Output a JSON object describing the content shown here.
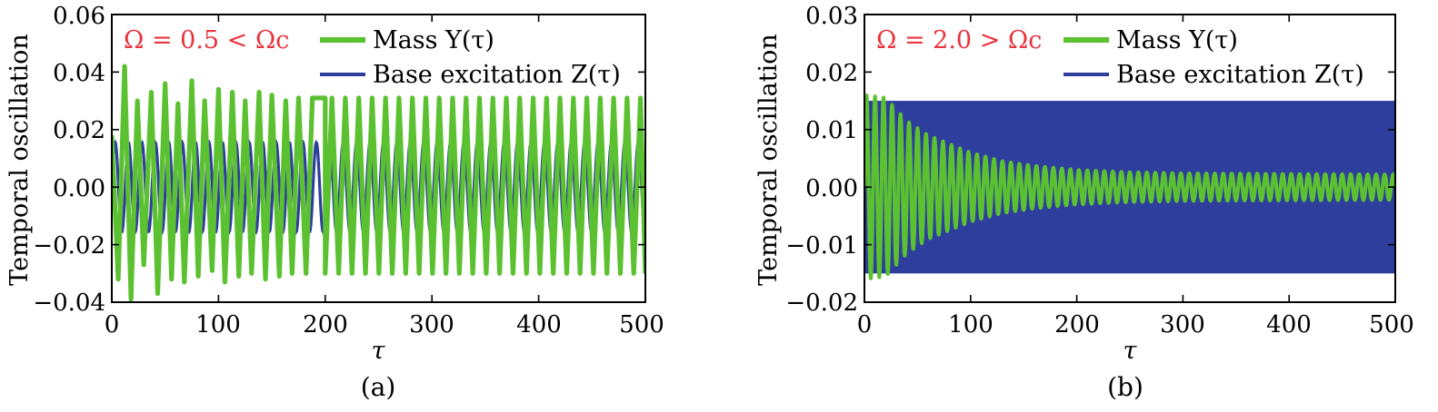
{
  "chart_data": [
    {
      "type": "line",
      "panel_label": "(a)",
      "annotation": "Ω = 0.5 < Ωc",
      "xlabel": "τ",
      "ylabel": "Temporal oscillation",
      "xlim": [
        0,
        500
      ],
      "ylim": [
        -0.04,
        0.06
      ],
      "xticks": [
        0,
        100,
        200,
        300,
        400,
        500
      ],
      "xtick_labels": [
        "0",
        "100",
        "200",
        "300",
        "400",
        "500"
      ],
      "yticks": [
        -0.04,
        -0.02,
        0.0,
        0.02,
        0.04,
        0.06
      ],
      "ytick_labels": [
        "−0.04",
        "−0.02",
        "0.00",
        "0.02",
        "0.04",
        "0.06"
      ],
      "grid": false,
      "legend_position": "top-right",
      "series": [
        {
          "name": "Mass  Y(τ)",
          "color": "#5cc131",
          "waveform": {
            "period": 12.57,
            "steady_upper": 0.031,
            "steady_lower": -0.03,
            "peaks": [
              [
                12,
                0.042
              ],
              [
                24,
                0.03
              ],
              [
                37,
                0.033
              ],
              [
                50,
                0.036
              ],
              [
                62,
                0.029
              ],
              [
                75,
                0.037
              ],
              [
                87,
                0.03
              ],
              [
                100,
                0.034
              ],
              [
                113,
                0.033
              ],
              [
                125,
                0.03
              ],
              [
                138,
                0.033
              ],
              [
                150,
                0.032
              ],
              [
                163,
                0.03
              ],
              [
                175,
                0.031
              ],
              [
                188,
                0.031
              ],
              [
                200,
                0.031
              ]
            ],
            "troughs": [
              [
                6,
                -0.032
              ],
              [
                18,
                -0.039
              ],
              [
                30,
                -0.027
              ],
              [
                43,
                -0.037
              ],
              [
                56,
                -0.032
              ],
              [
                68,
                -0.033
              ],
              [
                81,
                -0.031
              ],
              [
                94,
                -0.029
              ],
              [
                106,
                -0.033
              ],
              [
                119,
                -0.031
              ],
              [
                131,
                -0.03
              ],
              [
                144,
                -0.032
              ],
              [
                157,
                -0.031
              ],
              [
                169,
                -0.03
              ],
              [
                182,
                -0.03
              ],
              [
                200,
                -0.03
              ]
            ]
          }
        },
        {
          "name": "Base excitation  Z(τ)",
          "color": "#2d3e9d",
          "waveform": {
            "period": 12.57,
            "amplitude": 0.0155
          }
        }
      ]
    },
    {
      "type": "line",
      "panel_label": "(b)",
      "annotation": "Ω = 2.0 > Ωc",
      "xlabel": "τ",
      "ylabel": "Temporal oscillation",
      "xlim": [
        0,
        500
      ],
      "ylim": [
        -0.02,
        0.03
      ],
      "xticks": [
        0,
        100,
        200,
        300,
        400,
        500
      ],
      "xtick_labels": [
        "0",
        "100",
        "200",
        "300",
        "400",
        "500"
      ],
      "yticks": [
        -0.02,
        -0.01,
        0.0,
        0.01,
        0.02,
        0.03
      ],
      "ytick_labels": [
        "−0.02",
        "−0.01",
        "0.00",
        "0.01",
        "0.02",
        "0.03"
      ],
      "grid": false,
      "legend_position": "top-right",
      "series": [
        {
          "name": "Mass  Y(τ)",
          "color": "#5cc131",
          "waveform": {
            "period": 8.0,
            "envelope": [
              [
                0,
                0.016
              ],
              [
                20,
                0.0155
              ],
              [
                40,
                0.0115
              ],
              [
                60,
                0.009
              ],
              [
                80,
                0.0075
              ],
              [
                100,
                0.006
              ],
              [
                130,
                0.0045
              ],
              [
                160,
                0.0037
              ],
              [
                200,
                0.003
              ],
              [
                250,
                0.0026
              ],
              [
                300,
                0.0024
              ],
              [
                500,
                0.0022
              ]
            ]
          }
        },
        {
          "name": "Base excitation  Z(τ)",
          "color": "#2d3e9d",
          "waveform": {
            "period": 3.14,
            "amplitude": 0.015
          }
        }
      ]
    }
  ]
}
